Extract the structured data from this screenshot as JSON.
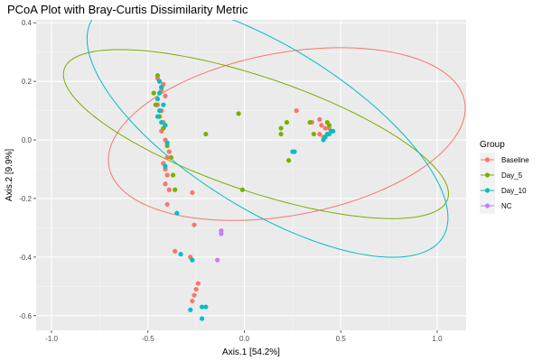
{
  "chart_data": {
    "type": "scatter",
    "title": "PCoA Plot with Bray-Curtis Dissimilarity Metric",
    "xlabel": "Axis.1   [54.2%]",
    "ylabel": "Axis.2   [9.9%]",
    "xlim": [
      -1.08,
      1.15
    ],
    "ylim": [
      -0.65,
      0.41
    ],
    "xticks": [
      -1.0,
      -0.5,
      0.0,
      0.5,
      1.0
    ],
    "xtick_labels": [
      "-1.0",
      "-0.5",
      "0.0",
      "0.5",
      "1.0"
    ],
    "yticks": [
      -0.6,
      -0.4,
      -0.2,
      0.0,
      0.2,
      0.4
    ],
    "ytick_labels": [
      "-0.6",
      "-0.4",
      "-0.2",
      "0.0",
      "0.2",
      "0.4"
    ],
    "grid": true,
    "legend_position": "right",
    "legend_title": "Group",
    "series": [
      {
        "name": "Baseline",
        "color": "#F8766D",
        "ellipse": {
          "cx": 0.22,
          "cy": 0.02,
          "rx": 0.93,
          "ry": 0.28,
          "angle_deg": 6
        },
        "points": [
          [
            -0.45,
            0.21
          ],
          [
            -0.44,
            0.2
          ],
          [
            -0.42,
            0.19
          ],
          [
            -0.43,
            0.17
          ],
          [
            -0.41,
            0.15
          ],
          [
            -0.45,
            0.12
          ],
          [
            -0.43,
            0.1
          ],
          [
            -0.44,
            0.08
          ],
          [
            -0.42,
            0.06
          ],
          [
            -0.43,
            0.03
          ],
          [
            -0.41,
            0.0
          ],
          [
            -0.39,
            -0.04
          ],
          [
            -0.4,
            -0.06
          ],
          [
            -0.42,
            -0.08
          ],
          [
            -0.41,
            -0.1
          ],
          [
            -0.4,
            -0.12
          ],
          [
            -0.41,
            -0.15
          ],
          [
            -0.39,
            -0.17
          ],
          [
            -0.27,
            -0.18
          ],
          [
            -0.4,
            -0.22
          ],
          [
            -0.26,
            -0.29
          ],
          [
            -0.36,
            -0.38
          ],
          [
            -0.28,
            -0.4
          ],
          [
            -0.24,
            -0.49
          ],
          [
            -0.25,
            -0.51
          ],
          [
            -0.26,
            -0.53
          ],
          [
            -0.27,
            -0.55
          ],
          [
            0.27,
            0.1
          ],
          [
            0.35,
            0.06
          ],
          [
            0.39,
            0.07
          ],
          [
            0.4,
            0.05
          ],
          [
            0.42,
            0.04
          ],
          [
            0.44,
            0.04
          ],
          [
            0.39,
            0.02
          ],
          [
            0.41,
            0.01
          ]
        ]
      },
      {
        "name": "Day_5",
        "color": "#7CAE00",
        "ellipse": {
          "cx": 0.06,
          "cy": 0.02,
          "rx": 1.02,
          "ry": 0.2,
          "angle_deg": -12
        },
        "points": [
          [
            -0.47,
            0.16
          ],
          [
            -0.45,
            0.22
          ],
          [
            -0.43,
            0.18
          ],
          [
            -0.46,
            0.12
          ],
          [
            -0.44,
            0.08
          ],
          [
            -0.42,
            0.04
          ],
          [
            -0.4,
            -0.02
          ],
          [
            -0.38,
            -0.06
          ],
          [
            -0.37,
            -0.12
          ],
          [
            -0.36,
            -0.17
          ],
          [
            -0.03,
            0.09
          ],
          [
            -0.2,
            0.02
          ],
          [
            -0.01,
            -0.17
          ],
          [
            0.19,
            0.04
          ],
          [
            0.19,
            0.02
          ],
          [
            0.22,
            0.06
          ],
          [
            0.23,
            -0.07
          ],
          [
            0.34,
            0.06
          ],
          [
            0.36,
            0.02
          ],
          [
            0.43,
            0.06
          ],
          [
            0.44,
            0.05
          ]
        ]
      },
      {
        "name": "Day_10",
        "color": "#00BFC4",
        "ellipse": {
          "cx": 0.12,
          "cy": 0.04,
          "rx": 0.99,
          "ry": 0.3,
          "angle_deg": -20
        },
        "points": [
          [
            -0.44,
            0.2
          ],
          [
            -0.43,
            0.18
          ],
          [
            -0.44,
            0.16
          ],
          [
            -0.45,
            0.14
          ],
          [
            -0.42,
            0.12
          ],
          [
            -0.44,
            0.1
          ],
          [
            -0.45,
            0.08
          ],
          [
            -0.43,
            0.06
          ],
          [
            -0.41,
            0.05
          ],
          [
            -0.4,
            -0.01
          ],
          [
            -0.41,
            -0.09
          ],
          [
            -0.35,
            -0.25
          ],
          [
            -0.33,
            -0.39
          ],
          [
            -0.27,
            -0.41
          ],
          [
            -0.22,
            -0.57
          ],
          [
            -0.2,
            -0.57
          ],
          [
            -0.22,
            -0.61
          ],
          [
            -0.28,
            -0.58
          ],
          [
            0.25,
            -0.04
          ],
          [
            0.26,
            -0.04
          ],
          [
            0.41,
            0.0
          ],
          [
            0.42,
            0.01
          ],
          [
            0.44,
            0.02
          ],
          [
            0.45,
            0.03
          ],
          [
            0.43,
            0.02
          ],
          [
            0.46,
            0.03
          ]
        ]
      },
      {
        "name": "NC",
        "color": "#C77CFF",
        "points": [
          [
            -0.12,
            -0.31
          ],
          [
            -0.12,
            -0.32
          ],
          [
            -0.14,
            -0.41
          ]
        ]
      }
    ]
  }
}
